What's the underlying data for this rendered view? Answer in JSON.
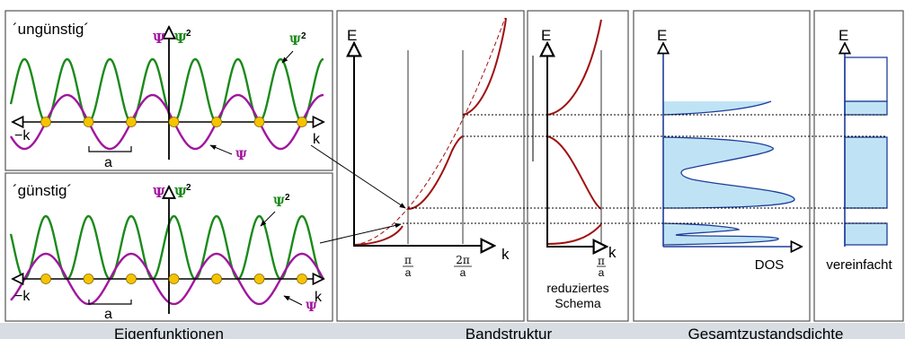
{
  "captions": {
    "eigen": "Eigenfunktionen",
    "band": "Bandstruktur",
    "gzd": "Gesamtzustandsdichte"
  },
  "panel_top": {
    "title": "´ungünstig´",
    "psi_label": "Ψ",
    "psi2_label": "Ψ",
    "sup": "2",
    "curve_psi2": "Ψ",
    "curve_psi": "Ψ",
    "axis_left": "−k",
    "axis_right": "k",
    "spacing": "a"
  },
  "panel_bottom": {
    "title": "´günstig´",
    "psi_label": "Ψ",
    "psi2_label": "Ψ",
    "sup": "2",
    "curve_psi2": "Ψ",
    "curve_psi": "Ψ",
    "axis_left": "−k",
    "axis_right": "k",
    "spacing": "a"
  },
  "band": {
    "e_label": "E",
    "k_label": "k",
    "tick1_num": "π",
    "tick1_den": "a",
    "tick2_num": "2π",
    "tick2_den": "a"
  },
  "reduced": {
    "e_label": "E",
    "k_label": "k",
    "tick_num": "π",
    "tick_den": "a",
    "caption_line1": "reduziertes",
    "caption_line2": "Schema"
  },
  "dos": {
    "e_label": "E",
    "caption": "DOS"
  },
  "simplified": {
    "e_label": "E",
    "caption": "vereinfacht"
  },
  "colors": {
    "green": "#1a8a1a",
    "purple": "#a0169e",
    "band_red": "#a01010",
    "dos_fill": "#bfe3f5",
    "dos_line": "#1f3d9a",
    "atom": "#f5c400",
    "caption_bar": "#d7dde3"
  }
}
